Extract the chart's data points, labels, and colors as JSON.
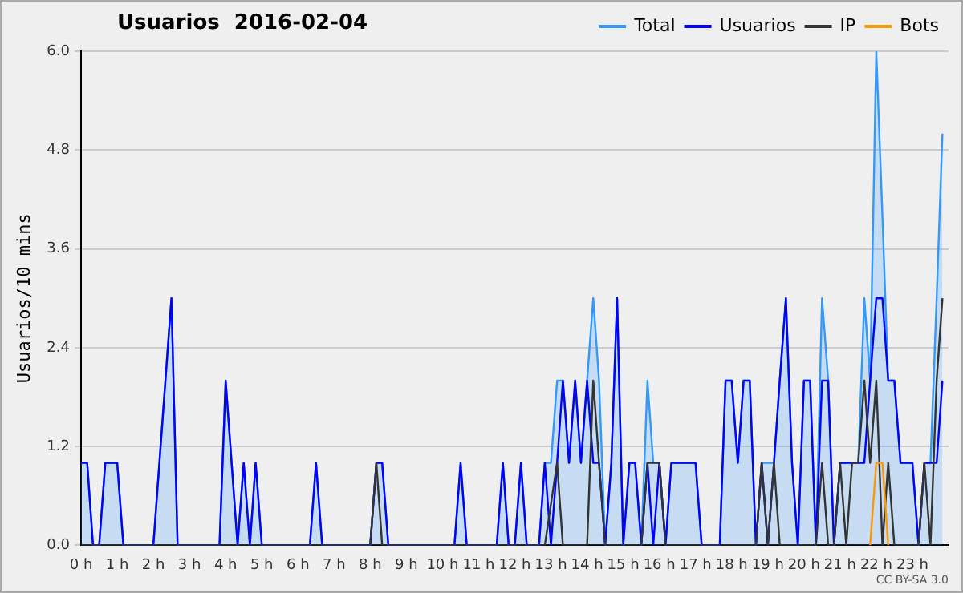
{
  "chart_data": {
    "type": "line",
    "title": "Usuarios  2016-02-04",
    "ylabel": "Usuarios/10 mins",
    "annotations": [
      "CC BY-SA 3.0"
    ],
    "xlim": [
      0,
      24
    ],
    "xticks": [
      {
        "value": 0,
        "label": "0 h"
      },
      {
        "value": 1,
        "label": "1 h"
      },
      {
        "value": 2,
        "label": "2 h"
      },
      {
        "value": 3,
        "label": "3 h"
      },
      {
        "value": 4,
        "label": "4 h"
      },
      {
        "value": 5,
        "label": "5 h"
      },
      {
        "value": 6,
        "label": "6 h"
      },
      {
        "value": 7,
        "label": "7 h"
      },
      {
        "value": 8,
        "label": "8 h"
      },
      {
        "value": 9,
        "label": "9 h"
      },
      {
        "value": 10,
        "label": "10 h"
      },
      {
        "value": 11,
        "label": "11 h"
      },
      {
        "value": 12,
        "label": "12 h"
      },
      {
        "value": 13,
        "label": "13 h"
      },
      {
        "value": 14,
        "label": "14 h"
      },
      {
        "value": 15,
        "label": "15 h"
      },
      {
        "value": 16,
        "label": "16 h"
      },
      {
        "value": 17,
        "label": "17 h"
      },
      {
        "value": 18,
        "label": "18 h"
      },
      {
        "value": 19,
        "label": "19 h"
      },
      {
        "value": 20,
        "label": "20 h"
      },
      {
        "value": 21,
        "label": "21 h"
      },
      {
        "value": 22,
        "label": "22 h"
      },
      {
        "value": 23,
        "label": "23 h"
      }
    ],
    "ylim": [
      0,
      6
    ],
    "yticks": [
      {
        "value": 0,
        "label": "0.0"
      },
      {
        "value": 1.2,
        "label": "1.2"
      },
      {
        "value": 2.4,
        "label": "2.4"
      },
      {
        "value": 3.6,
        "label": "3.6"
      },
      {
        "value": 4.8,
        "label": "4.8"
      },
      {
        "value": 6,
        "label": "6.0"
      }
    ],
    "grid": "y",
    "legend": "top right",
    "marker": "none",
    "line_style": "solid",
    "series": [
      {
        "name": "Total",
        "type": "area",
        "color": "#3399ff",
        "x": [
          0,
          0.17,
          0.33,
          0.5,
          0.67,
          1.0,
          1.17,
          2.0,
          2.5,
          2.67,
          3.83,
          4.0,
          4.33,
          4.5,
          4.67,
          4.83,
          5.0,
          6.33,
          6.5,
          6.67,
          8.0,
          8.17,
          8.33,
          8.5,
          10.33,
          10.5,
          10.67,
          11.5,
          11.67,
          11.83,
          12.0,
          12.17,
          12.33,
          12.67,
          12.83,
          13.0,
          13.17,
          13.33,
          13.5,
          13.67,
          13.83,
          14.0,
          14.17,
          14.33,
          14.5,
          14.67,
          14.83,
          15.0,
          15.17,
          15.33,
          15.5,
          15.67,
          15.83,
          16.0,
          16.17,
          16.33,
          17.0,
          17.17,
          17.67,
          17.83,
          18.0,
          18.17,
          18.33,
          18.5,
          18.67,
          18.83,
          19.0,
          19.17,
          19.33,
          19.5,
          19.67,
          19.83,
          20.0,
          20.17,
          20.33,
          20.5,
          20.67,
          20.83,
          21.0,
          21.5,
          21.67,
          21.83,
          22.0,
          22.17,
          22.33,
          22.5,
          22.67,
          23.0,
          23.17,
          23.33,
          23.5,
          23.67,
          23.83
        ],
        "values": [
          1,
          1,
          0,
          0,
          1,
          1,
          0,
          0,
          3,
          0,
          0,
          2,
          0,
          1,
          0,
          1,
          0,
          0,
          1,
          0,
          0,
          1,
          1,
          0,
          0,
          1,
          0,
          0,
          1,
          0,
          0,
          1,
          0,
          0,
          1,
          1,
          2,
          2,
          1,
          2,
          1,
          2,
          3,
          2,
          0,
          1,
          3,
          0,
          1,
          1,
          0,
          2,
          1,
          1,
          0,
          1,
          1,
          0,
          0,
          2,
          2,
          1,
          2,
          2,
          0,
          1,
          1,
          1,
          2,
          3,
          1,
          0,
          2,
          2,
          0,
          3,
          2,
          0,
          1,
          1,
          3,
          2,
          6,
          4,
          2,
          2,
          1,
          1,
          0,
          1,
          1,
          3,
          5
        ]
      },
      {
        "name": "Usuarios",
        "type": "line",
        "color": "#0000ff",
        "x": [
          0,
          0.17,
          0.33,
          0.5,
          0.67,
          1.0,
          1.17,
          2.0,
          2.5,
          2.67,
          3.83,
          4.0,
          4.33,
          4.5,
          4.67,
          4.83,
          5.0,
          6.33,
          6.5,
          6.67,
          8.0,
          8.17,
          8.33,
          8.5,
          10.33,
          10.5,
          10.67,
          11.5,
          11.67,
          11.83,
          12.0,
          12.17,
          12.33,
          12.67,
          12.83,
          13.0,
          13.17,
          13.33,
          13.5,
          13.67,
          13.83,
          14.0,
          14.17,
          14.33,
          14.5,
          14.67,
          14.83,
          15.0,
          15.17,
          15.33,
          15.5,
          15.67,
          15.83,
          16.0,
          16.17,
          16.33,
          17.0,
          17.17,
          17.67,
          17.83,
          18.0,
          18.17,
          18.33,
          18.5,
          18.67,
          18.83,
          19.0,
          19.17,
          19.33,
          19.5,
          19.67,
          19.83,
          20.0,
          20.17,
          20.33,
          20.5,
          20.67,
          20.83,
          21.0,
          21.67,
          21.83,
          22.0,
          22.17,
          22.33,
          22.5,
          22.67,
          23.0,
          23.17,
          23.33,
          23.67,
          23.83
        ],
        "values": [
          1,
          1,
          0,
          0,
          1,
          1,
          0,
          0,
          3,
          0,
          0,
          2,
          0,
          1,
          0,
          1,
          0,
          0,
          1,
          0,
          0,
          1,
          1,
          0,
          0,
          1,
          0,
          0,
          1,
          0,
          0,
          1,
          0,
          0,
          1,
          0,
          1,
          2,
          1,
          2,
          1,
          2,
          1,
          1,
          0,
          1,
          3,
          0,
          1,
          1,
          0,
          1,
          0,
          1,
          0,
          1,
          1,
          0,
          0,
          2,
          2,
          1,
          2,
          2,
          0,
          1,
          0,
          1,
          2,
          3,
          1,
          0,
          2,
          2,
          0,
          2,
          2,
          0,
          1,
          1,
          2,
          3,
          3,
          2,
          2,
          1,
          1,
          0,
          1,
          1,
          2
        ]
      },
      {
        "name": "IP",
        "type": "line",
        "color": "#333333",
        "x": [
          0,
          8.0,
          8.17,
          8.33,
          12.83,
          13.17,
          13.33,
          14.0,
          14.17,
          14.33,
          14.5,
          15.5,
          15.67,
          16.0,
          16.17,
          18.67,
          18.83,
          19.0,
          19.17,
          19.33,
          20.33,
          20.5,
          20.67,
          20.83,
          21.0,
          21.17,
          21.33,
          21.5,
          21.67,
          21.83,
          22.0,
          22.17,
          22.33,
          22.5,
          23.17,
          23.33,
          23.5,
          23.67,
          23.83
        ],
        "values": [
          0,
          0,
          1,
          0,
          0,
          1,
          0,
          0,
          2,
          1,
          0,
          0,
          1,
          1,
          0,
          0,
          1,
          0,
          1,
          0,
          0,
          1,
          0,
          0,
          1,
          0,
          1,
          1,
          2,
          1,
          2,
          0,
          1,
          0,
          0,
          1,
          0,
          2,
          3
        ]
      },
      {
        "name": "Bots",
        "type": "line",
        "color": "#ff9900",
        "x": [
          21.83,
          22.0,
          22.17,
          22.33
        ],
        "values": [
          0,
          1,
          1,
          0
        ]
      }
    ]
  }
}
